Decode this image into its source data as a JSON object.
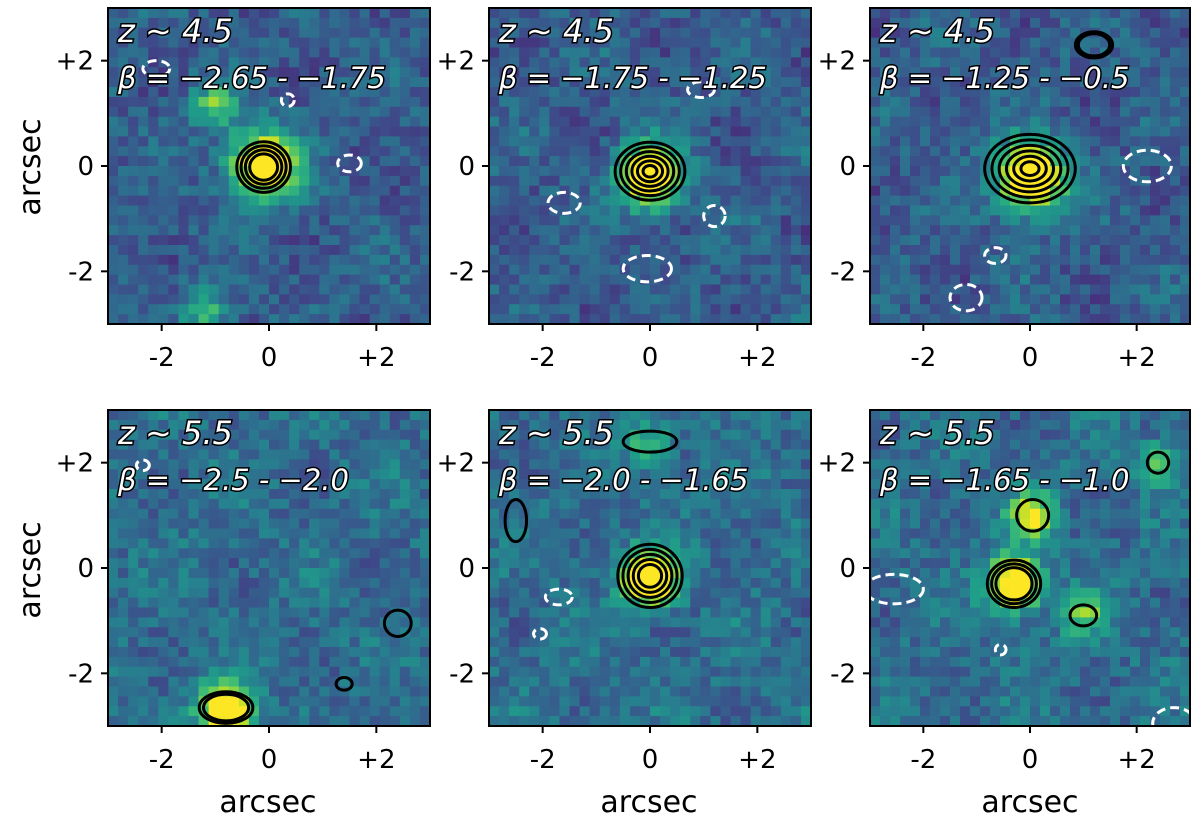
{
  "figure": {
    "ylabel": "arcsec",
    "xlabel": "arcsec"
  },
  "chart_data": [
    {
      "type": "heatmap",
      "title_lines": [
        "z ∼ 4.5",
        "β = −2.65 - −1.75"
      ],
      "xlim": [
        -3,
        3
      ],
      "ylim": [
        -3,
        3
      ],
      "xticks": [
        "-2",
        "0",
        "+2"
      ],
      "yticks": [
        "+2",
        "0",
        "-2"
      ],
      "source": {
        "x": -0.1,
        "y": 0.0,
        "peak": 0.95,
        "sigma": 0.45
      },
      "blobs": [
        {
          "x": -1.0,
          "y": 1.15,
          "a": 0.45
        },
        {
          "x": -1.15,
          "y": -2.75,
          "a": 0.35
        }
      ],
      "positive_contours": [
        {
          "x": -0.1,
          "y": -0.02,
          "rx": 0.5,
          "ry": 0.48,
          "n": 4
        }
      ],
      "negative_contours": [
        {
          "x": 1.5,
          "y": 0.05,
          "rx": 0.22,
          "ry": 0.16
        },
        {
          "x": 0.35,
          "y": 1.25,
          "rx": 0.12,
          "ry": 0.12
        },
        {
          "x": -2.1,
          "y": 1.85,
          "rx": 0.25,
          "ry": 0.15
        }
      ]
    },
    {
      "type": "heatmap",
      "title_lines": [
        "z ∼ 4.5",
        "β = −1.75 - −1.25"
      ],
      "xlim": [
        -3,
        3
      ],
      "ylim": [
        -3,
        3
      ],
      "xticks": [
        "-2",
        "0",
        "+2"
      ],
      "yticks": [
        "+2",
        "0",
        "-2"
      ],
      "source": {
        "x": 0.0,
        "y": -0.2,
        "peak": 1.0,
        "sigma": 0.4
      },
      "blobs": [],
      "positive_contours": [
        {
          "x": 0.0,
          "y": -0.1,
          "rx": 0.65,
          "ry": 0.55,
          "n": 6
        }
      ],
      "negative_contours": [
        {
          "x": -1.6,
          "y": -0.7,
          "rx": 0.3,
          "ry": 0.2
        },
        {
          "x": 1.2,
          "y": -0.95,
          "rx": 0.2,
          "ry": 0.2
        },
        {
          "x": -0.05,
          "y": -1.95,
          "rx": 0.45,
          "ry": 0.25
        },
        {
          "x": 0.95,
          "y": 1.45,
          "rx": 0.25,
          "ry": 0.15
        }
      ]
    },
    {
      "type": "heatmap",
      "title_lines": [
        "z ∼ 4.5",
        "β = −1.25 - −0.5"
      ],
      "xlim": [
        -3,
        3
      ],
      "ylim": [
        -3,
        3
      ],
      "xticks": [
        "-2",
        "0",
        "+2"
      ],
      "yticks": [
        "+2",
        "0",
        "-2"
      ],
      "source": {
        "x": 0.0,
        "y": -0.2,
        "peak": 1.0,
        "sigma": 0.45
      },
      "blobs": [],
      "positive_contours": [
        {
          "x": 0.0,
          "y": -0.05,
          "rx": 0.85,
          "ry": 0.65,
          "n": 6
        },
        {
          "x": 1.2,
          "y": 2.3,
          "rx": 0.35,
          "ry": 0.25,
          "n": 2
        }
      ],
      "negative_contours": [
        {
          "x": 2.2,
          "y": 0.0,
          "rx": 0.45,
          "ry": 0.3
        },
        {
          "x": -1.2,
          "y": -2.5,
          "rx": 0.3,
          "ry": 0.25
        },
        {
          "x": -0.65,
          "y": -1.7,
          "rx": 0.2,
          "ry": 0.15
        }
      ]
    },
    {
      "type": "heatmap",
      "title_lines": [
        "z ∼ 5.5",
        "β = −2.5 - −2.0"
      ],
      "xlim": [
        -3,
        3
      ],
      "ylim": [
        -3,
        3
      ],
      "xticks": [
        "-2",
        "0",
        "+2"
      ],
      "yticks": [
        "+2",
        "0",
        "-2"
      ],
      "source": {
        "x": -0.8,
        "y": -2.7,
        "peak": 0.9,
        "sigma": 0.35
      },
      "blobs": [],
      "positive_contours": [
        {
          "x": -0.8,
          "y": -2.65,
          "rx": 0.5,
          "ry": 0.3,
          "n": 2
        },
        {
          "x": 2.4,
          "y": -1.05,
          "rx": 0.25,
          "ry": 0.25,
          "n": 1
        },
        {
          "x": 1.4,
          "y": -2.2,
          "rx": 0.15,
          "ry": 0.12,
          "n": 1
        }
      ],
      "negative_contours": [
        {
          "x": -2.35,
          "y": 1.95,
          "rx": 0.12,
          "ry": 0.1
        }
      ]
    },
    {
      "type": "heatmap",
      "title_lines": [
        "z ∼ 5.5",
        "β = −2.0 - −1.65"
      ],
      "xlim": [
        -3,
        3
      ],
      "ylim": [
        -3,
        3
      ],
      "xticks": [
        "-2",
        "0",
        "+2"
      ],
      "yticks": [
        "+2",
        "0",
        "-2"
      ],
      "source": {
        "x": 0.0,
        "y": -0.2,
        "peak": 1.0,
        "sigma": 0.35
      },
      "blobs": [
        {
          "x": 0.0,
          "y": 2.35,
          "a": 0.35
        }
      ],
      "positive_contours": [
        {
          "x": 0.0,
          "y": -0.15,
          "rx": 0.6,
          "ry": 0.6,
          "n": 5
        },
        {
          "x": 0.0,
          "y": 2.4,
          "rx": 0.5,
          "ry": 0.2,
          "n": 1
        },
        {
          "x": -2.5,
          "y": 0.9,
          "rx": 0.2,
          "ry": 0.4,
          "n": 1
        }
      ],
      "negative_contours": [
        {
          "x": -1.7,
          "y": -0.55,
          "rx": 0.25,
          "ry": 0.15
        },
        {
          "x": -2.05,
          "y": -1.25,
          "rx": 0.12,
          "ry": 0.1
        }
      ]
    },
    {
      "type": "heatmap",
      "title_lines": [
        "z ∼ 5.5",
        "β = −1.65 - −1.0"
      ],
      "xlim": [
        -3,
        3
      ],
      "ylim": [
        -3,
        3
      ],
      "xticks": [
        "-2",
        "0",
        "+2"
      ],
      "yticks": [
        "+2",
        "0",
        "-2"
      ],
      "source": {
        "x": -0.3,
        "y": -0.3,
        "peak": 0.95,
        "sigma": 0.35
      },
      "blobs": [
        {
          "x": 0.05,
          "y": 1.0,
          "a": 0.65
        },
        {
          "x": 1.0,
          "y": -0.9,
          "a": 0.4
        },
        {
          "x": 2.4,
          "y": 2.0,
          "a": 0.35
        }
      ],
      "positive_contours": [
        {
          "x": -0.3,
          "y": -0.3,
          "rx": 0.5,
          "ry": 0.45,
          "n": 3
        },
        {
          "x": 0.05,
          "y": 1.0,
          "rx": 0.3,
          "ry": 0.3,
          "n": 1
        },
        {
          "x": 1.0,
          "y": -0.9,
          "rx": 0.25,
          "ry": 0.2,
          "n": 1
        },
        {
          "x": 2.4,
          "y": 2.0,
          "rx": 0.2,
          "ry": 0.2,
          "n": 1
        }
      ],
      "negative_contours": [
        {
          "x": -2.55,
          "y": -0.4,
          "rx": 0.55,
          "ry": 0.28
        },
        {
          "x": -0.55,
          "y": -1.55,
          "rx": 0.1,
          "ry": 0.1
        },
        {
          "x": 2.7,
          "y": -2.95,
          "rx": 0.4,
          "ry": 0.3
        }
      ]
    }
  ]
}
